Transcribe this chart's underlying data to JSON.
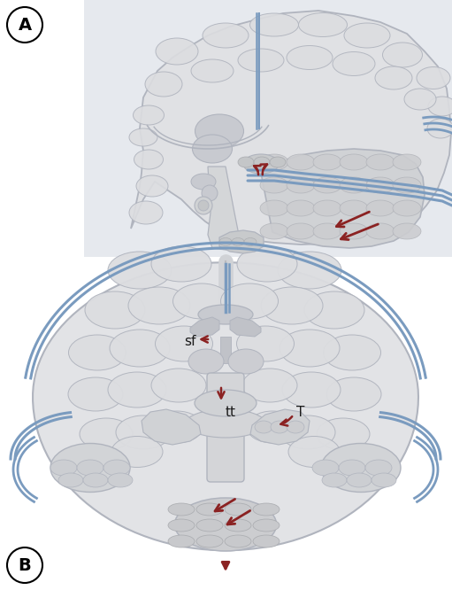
{
  "bg_color": "#ffffff",
  "gyrus_fill": "#dcdde0",
  "gyrus_stroke": "#b0b4be",
  "brain_fill": "#e0e1e4",
  "brain_stroke": "#b0b4be",
  "deep_fill": "#c8cad0",
  "darker_fill": "#c0c2c8",
  "blue": "#7a9bbf",
  "blue_light": "#a0bad8",
  "arr": "#8b2222",
  "label_color": "#1a1a1a",
  "panel_bg": "#e6e9ee",
  "sf_label": "sf",
  "tt_label": "tt",
  "T_label": "T",
  "panel_A_label": "A",
  "panel_B_label": "B"
}
